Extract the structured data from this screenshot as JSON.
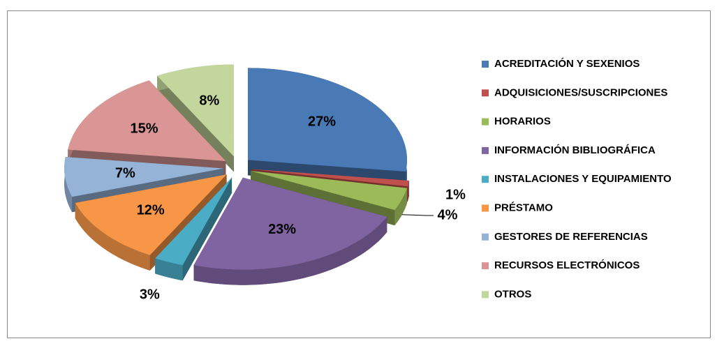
{
  "chart_data": {
    "type": "pie",
    "categories": [
      "ACREDITACIÓN Y SEXENIOS",
      "ADQUISICIONES/SUSCRIPCIONES",
      "HORARIOS",
      "INFORMACIÓN BIBLIOGRÁFICA",
      "INSTALACIONES Y EQUIPAMIENTO",
      "PRÉSTAMO",
      "GESTORES DE REFERENCIAS",
      "RECURSOS ELECTRÓNICOS",
      "OTROS"
    ],
    "values": [
      27,
      1,
      4,
      23,
      3,
      12,
      7,
      15,
      8
    ],
    "value_labels": [
      "27%",
      "1%",
      "4%",
      "23%",
      "3%",
      "12%",
      "7%",
      "15%",
      "8%"
    ],
    "colors": [
      "#4a7ab5",
      "#c0504d",
      "#9bbb59",
      "#8064a2",
      "#4bacc6",
      "#f79646",
      "#95b3d7",
      "#d99694",
      "#c3d69b"
    ],
    "legend": "right"
  }
}
